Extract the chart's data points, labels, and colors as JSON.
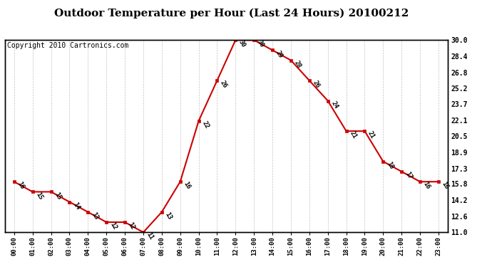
{
  "title": "Outdoor Temperature per Hour (Last 24 Hours) 20100212",
  "copyright": "Copyright 2010 Cartronics.com",
  "hours": [
    "00:00",
    "01:00",
    "02:00",
    "03:00",
    "04:00",
    "05:00",
    "06:00",
    "07:00",
    "08:00",
    "09:00",
    "10:00",
    "11:00",
    "12:00",
    "13:00",
    "14:00",
    "15:00",
    "16:00",
    "17:00",
    "18:00",
    "19:00",
    "20:00",
    "21:00",
    "22:00",
    "23:00"
  ],
  "temps": [
    16,
    15,
    15,
    14,
    13,
    12,
    12,
    11,
    13,
    16,
    22,
    26,
    30,
    30,
    29,
    28,
    26,
    24,
    21,
    21,
    18,
    17,
    16,
    16
  ],
  "ylim": [
    11.0,
    30.0
  ],
  "yticks": [
    11.0,
    12.6,
    14.2,
    15.8,
    17.3,
    18.9,
    20.5,
    22.1,
    23.7,
    25.2,
    26.8,
    28.4,
    30.0
  ],
  "line_color": "#cc0000",
  "marker_color": "#cc0000",
  "grid_color": "#aaaaaa",
  "bg_color": "#ffffff",
  "title_fontsize": 11,
  "copyright_fontsize": 7
}
